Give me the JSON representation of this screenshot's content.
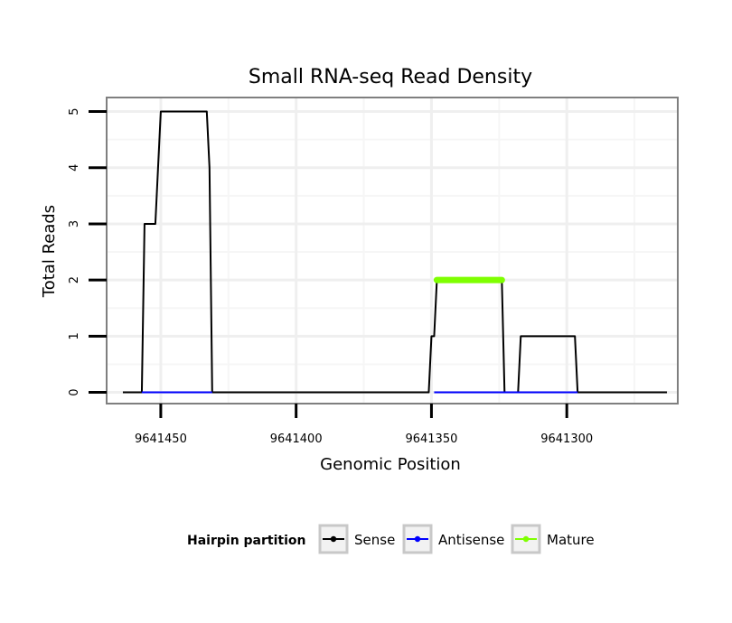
{
  "chart_data": {
    "type": "line",
    "title": "Small RNA-seq Read Density",
    "xlabel": "Genomic Position",
    "ylabel": "Total Reads",
    "x_reversed": true,
    "xlim": [
      9641470,
      9641259
    ],
    "ylim": [
      -0.2,
      5.25
    ],
    "x_ticks": [
      9641450,
      9641400,
      9641350,
      9641300
    ],
    "x_tick_labels": [
      "9641450",
      "9641400",
      "9641350",
      "9641300"
    ],
    "y_ticks": [
      0,
      1,
      2,
      3,
      4,
      5
    ],
    "y_tick_labels": [
      "0",
      "1",
      "2",
      "3",
      "4",
      "5"
    ],
    "grid": true,
    "legend": {
      "title": "Hairpin partition",
      "placement": "bottom",
      "entries": [
        "Sense",
        "Antisense",
        "Mature"
      ]
    },
    "series": [
      {
        "name": "Sense",
        "color": "#000000",
        "x": [
          9641464,
          9641457,
          9641456,
          9641452,
          9641451,
          9641450,
          9641433,
          9641432,
          9641431,
          9641351,
          9641350,
          9641349,
          9641348,
          9641324,
          9641323,
          9641318,
          9641317,
          9641297,
          9641296,
          9641263
        ],
        "y": [
          0,
          0,
          3,
          3,
          4,
          5,
          5,
          4,
          0,
          0,
          1,
          1,
          2,
          2,
          0,
          0,
          1,
          1,
          0,
          0
        ]
      },
      {
        "name": "Antisense",
        "color": "#0000ff",
        "x": [
          9641457,
          9641431,
          9641349,
          9641296
        ],
        "y": [
          0,
          0,
          0,
          0
        ],
        "segments": [
          [
            9641457,
            9641431
          ],
          [
            9641349,
            9641296
          ]
        ]
      },
      {
        "name": "Mature",
        "color": "#7fff00",
        "x": [
          9641348,
          9641324
        ],
        "y": [
          2,
          2
        ]
      }
    ]
  }
}
